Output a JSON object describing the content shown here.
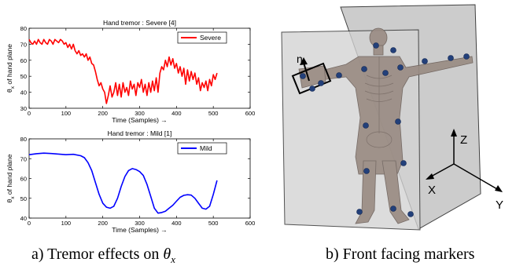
{
  "chart_data": [
    {
      "type": "line",
      "title": "Hand tremor : Severe [4]",
      "xlabel": "Time (Samples) →",
      "ylabel": "θ",
      "ylabel_sub": "x",
      "ylabel_rest": " of hand plane",
      "xlim": [
        0,
        600
      ],
      "ylim": [
        30,
        80
      ],
      "xticks": [
        0,
        100,
        200,
        300,
        400,
        500,
        600
      ],
      "yticks": [
        30,
        40,
        50,
        60,
        70,
        80
      ],
      "legend_position": "top-right",
      "color": "#ff0000",
      "series": [
        {
          "name": "Severe",
          "x": [
            0,
            5,
            10,
            15,
            20,
            25,
            30,
            35,
            40,
            45,
            50,
            55,
            60,
            65,
            70,
            75,
            80,
            85,
            90,
            95,
            100,
            105,
            110,
            115,
            120,
            125,
            130,
            135,
            140,
            145,
            150,
            155,
            160,
            165,
            170,
            175,
            180,
            185,
            190,
            195,
            200,
            205,
            210,
            215,
            220,
            225,
            230,
            235,
            240,
            245,
            250,
            255,
            260,
            265,
            270,
            275,
            280,
            285,
            290,
            295,
            300,
            305,
            310,
            315,
            320,
            325,
            330,
            335,
            340,
            345,
            350,
            355,
            360,
            365,
            370,
            375,
            380,
            385,
            390,
            395,
            400,
            405,
            410,
            415,
            420,
            425,
            430,
            435,
            440,
            445,
            450,
            455,
            460,
            465,
            470,
            475,
            480,
            485,
            490,
            495,
            500,
            505,
            510
          ],
          "values": [
            73,
            71,
            70,
            72,
            70,
            73,
            71,
            70,
            73,
            71,
            70,
            73,
            72,
            70,
            73,
            72,
            71,
            73,
            72,
            70,
            71,
            68,
            70,
            67,
            70,
            66,
            64,
            66,
            63,
            64,
            62,
            64,
            60,
            62,
            58,
            57,
            53,
            48,
            44,
            46,
            42,
            40,
            33,
            38,
            44,
            37,
            40,
            46,
            38,
            45,
            37,
            46,
            40,
            43,
            38,
            47,
            42,
            45,
            38,
            46,
            43,
            48,
            40,
            45,
            38,
            46,
            40,
            47,
            41,
            49,
            40,
            52,
            56,
            54,
            60,
            56,
            62,
            57,
            61,
            55,
            58,
            52,
            56,
            50,
            55,
            45,
            54,
            47,
            53,
            48,
            52,
            45,
            49,
            41,
            46,
            43,
            47,
            41,
            48,
            44,
            51,
            48,
            52
          ]
        }
      ]
    },
    {
      "type": "line",
      "title": "Hand tremor : Mild [1]",
      "xlabel": "Time (Samples) →",
      "ylabel": "θ",
      "ylabel_sub": "x",
      "ylabel_rest": " of hand plane",
      "xlim": [
        0,
        600
      ],
      "ylim": [
        40,
        80
      ],
      "xticks": [
        0,
        100,
        200,
        300,
        400,
        500,
        600
      ],
      "yticks": [
        40,
        50,
        60,
        70,
        80
      ],
      "legend_position": "top-right",
      "color": "#0000ff",
      "series": [
        {
          "name": "Mild",
          "x": [
            0,
            20,
            40,
            60,
            80,
            100,
            120,
            140,
            150,
            160,
            170,
            180,
            190,
            200,
            210,
            220,
            230,
            240,
            250,
            260,
            270,
            280,
            290,
            300,
            310,
            320,
            330,
            340,
            350,
            360,
            370,
            380,
            390,
            400,
            410,
            420,
            430,
            440,
            450,
            460,
            470,
            480,
            490,
            500,
            510
          ],
          "values": [
            72,
            72.5,
            72.8,
            72.6,
            72.3,
            72.0,
            72.2,
            71.5,
            70.5,
            68.0,
            64.0,
            58.0,
            52.0,
            47.5,
            45.5,
            45.0,
            46.0,
            50.0,
            56.0,
            61.0,
            64.0,
            65.0,
            64.5,
            63.5,
            61.5,
            57.0,
            51.0,
            45.0,
            42.5,
            42.8,
            43.5,
            45.0,
            46.5,
            48.5,
            50.5,
            51.5,
            51.8,
            51.6,
            50.0,
            47.5,
            45.0,
            44.5,
            46.0,
            52.0,
            59.0
          ]
        }
      ]
    }
  ],
  "captions": {
    "left_prefix": "a) Tremor effects on ",
    "left_symbol": "θ",
    "left_sub": "x",
    "right": "b) Front facing markers"
  },
  "figure_right": {
    "normal_label": "n",
    "axis_z": "Z",
    "axis_x": "X",
    "axis_y": "Y"
  }
}
